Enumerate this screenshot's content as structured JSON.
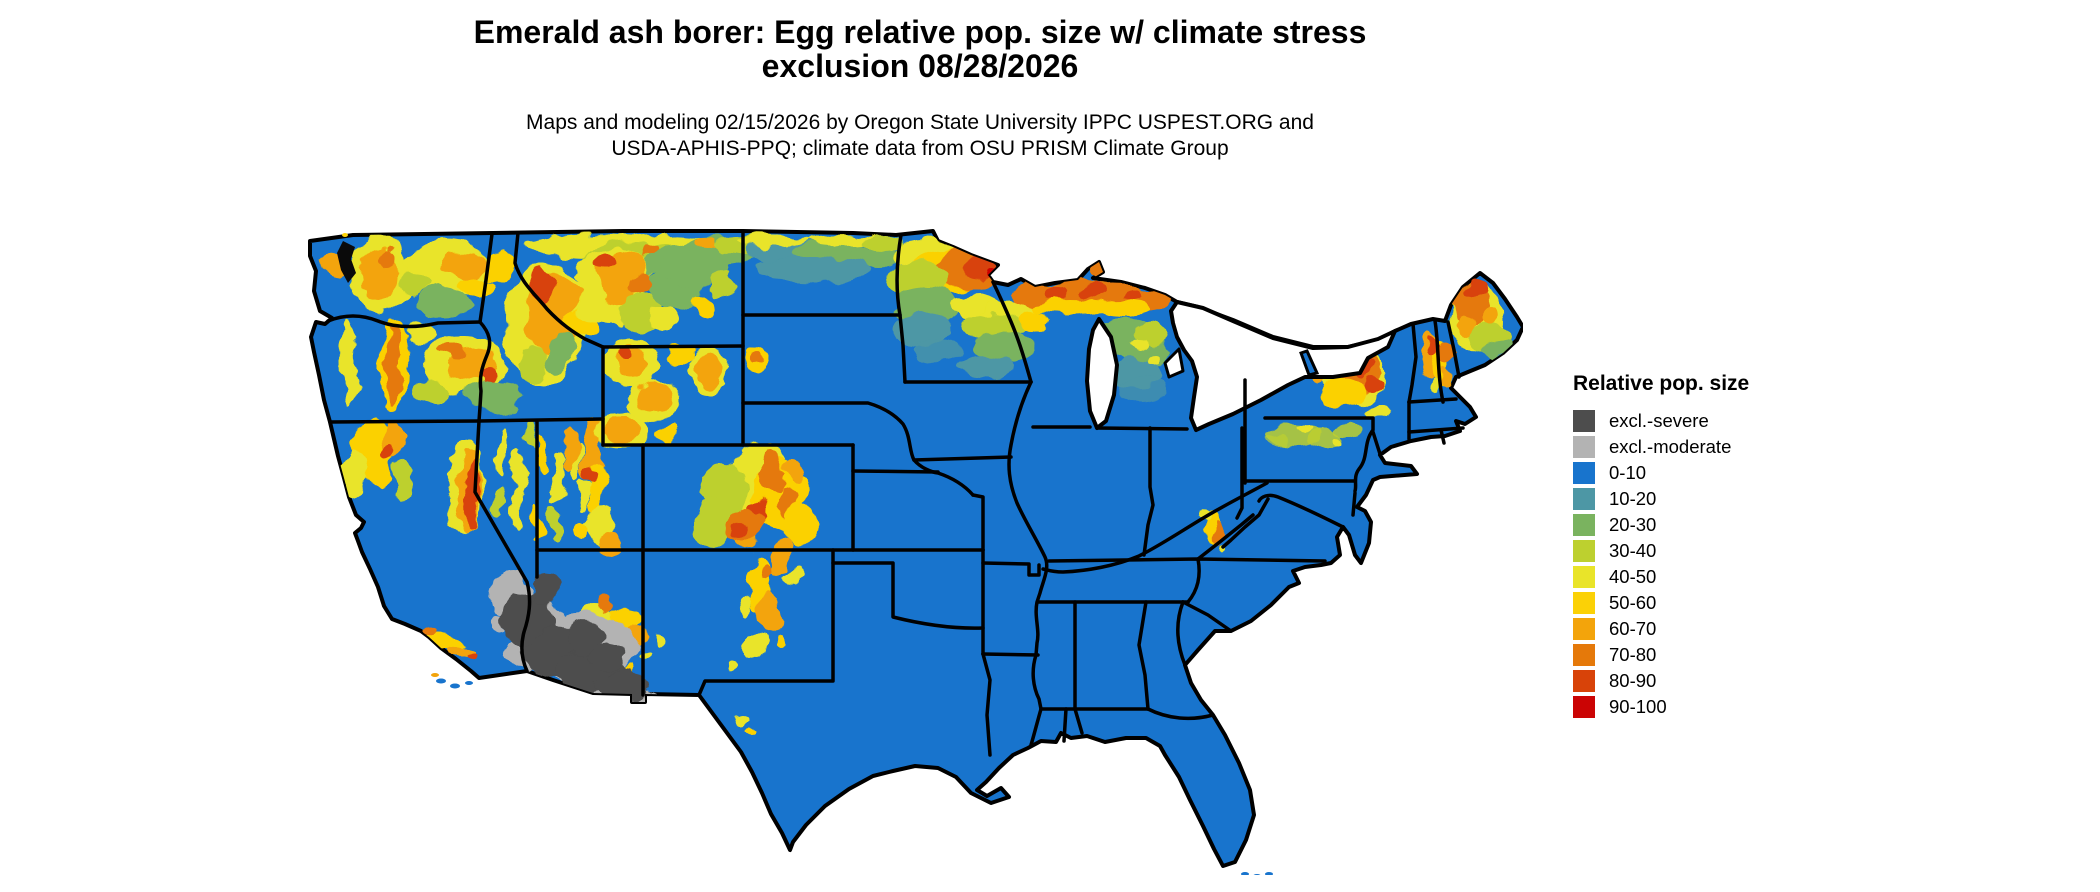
{
  "header": {
    "title": "Emerald ash borer: Egg relative pop. size w/ climate stress\nexclusion 08/28/2026",
    "subtitle": "Maps and modeling 02/15/2026 by Oregon State University IPPC USPEST.ORG and\nUSDA-APHIS-PPQ; climate data from OSU PRISM Climate Group"
  },
  "legend": {
    "title": "Relative pop. size",
    "items": [
      {
        "label": "excl.-severe",
        "color": "#4d4d4d"
      },
      {
        "label": "excl.-moderate",
        "color": "#b3b3b3"
      },
      {
        "label": "0-10",
        "color": "#1874cd"
      },
      {
        "label": "10-20",
        "color": "#4d97a5"
      },
      {
        "label": "20-30",
        "color": "#7ab35f"
      },
      {
        "label": "30-40",
        "color": "#bdd02f"
      },
      {
        "label": "40-50",
        "color": "#e9e429"
      },
      {
        "label": "50-60",
        "color": "#fbd106"
      },
      {
        "label": "60-70",
        "color": "#f3a40b"
      },
      {
        "label": "70-80",
        "color": "#e5790a"
      },
      {
        "label": "80-90",
        "color": "#d84309"
      },
      {
        "label": "90-100",
        "color": "#cb0404"
      }
    ]
  },
  "palette": {
    "exclS": "#4d4d4d",
    "exclM": "#b3b3b3",
    "p0_10": "#1874cd",
    "p10_20": "#4d97a5",
    "p20_30": "#7ab35f",
    "p30_40": "#bdd02f",
    "p40_50": "#e9e429",
    "p50_60": "#fbd106",
    "p60_70": "#f3a40b",
    "p70_80": "#e5790a",
    "p80_90": "#d84309",
    "p90_100": "#cb0404",
    "border": "#000000",
    "water": "#ffffff"
  },
  "map": {
    "kind": "raster choropleth of continental United States with state borders"
  }
}
